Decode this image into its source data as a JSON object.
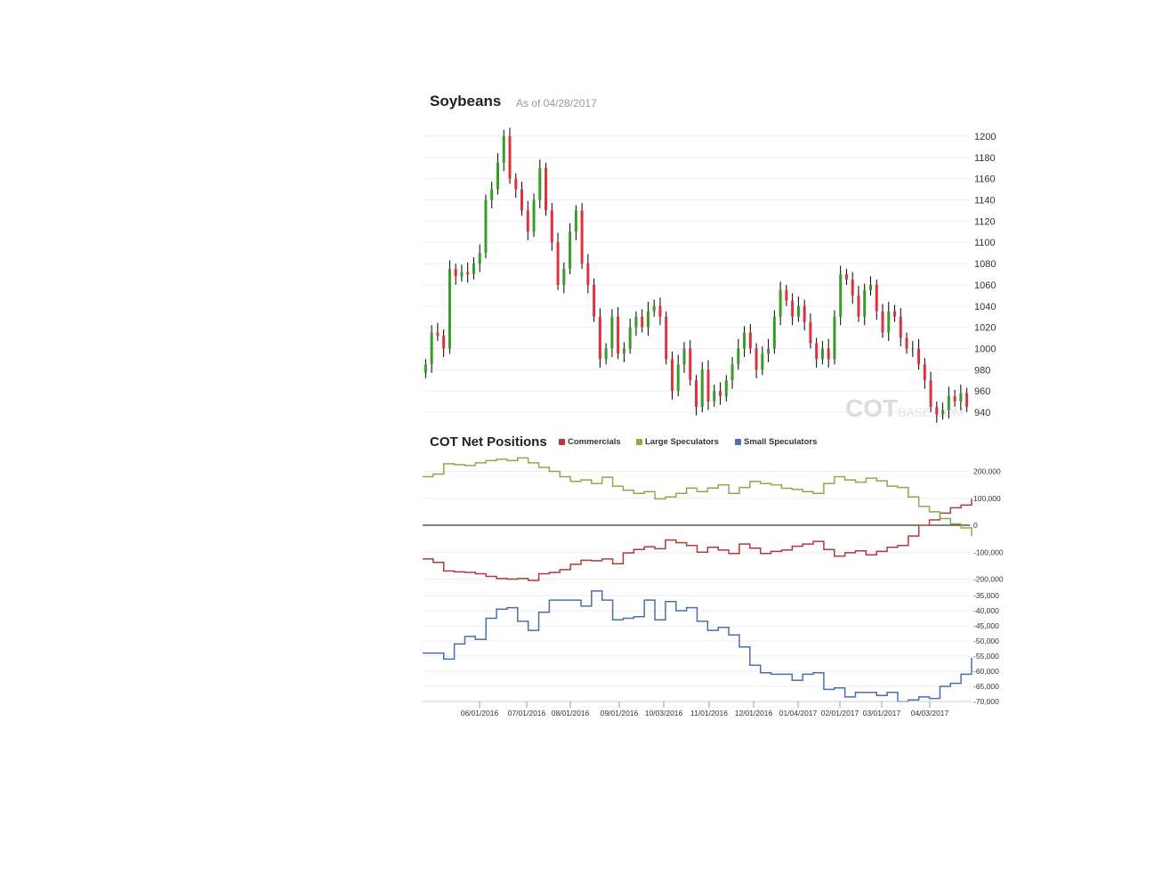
{
  "header": {
    "title": "Soybeans",
    "subtitle": "As of 04/28/2017"
  },
  "watermark": {
    "logo_text": "COTBASE.COM"
  },
  "colors": {
    "up": "#3a9a2a",
    "down": "#e0313c",
    "wick": "#000000",
    "commercials": "#b5383a",
    "large_speculators": "#8aab4a",
    "small_speculators": "#4a6fae",
    "grid": "#eeeeee"
  },
  "chart_data": [
    {
      "type": "candlestick",
      "title": "Soybeans",
      "ylim": [
        932,
        1211
      ],
      "yticks": [
        "1200",
        "1180",
        "1160",
        "1140",
        "1120",
        "1100",
        "1080",
        "1060",
        "1040",
        "1020",
        "1000",
        "980",
        "960",
        "940"
      ],
      "close": [
        985,
        1015,
        1012,
        1000,
        1075,
        1068,
        1072,
        1070,
        1080,
        1090,
        1140,
        1150,
        1175,
        1200,
        1160,
        1150,
        1130,
        1110,
        1140,
        1170,
        1130,
        1100,
        1060,
        1075,
        1110,
        1130,
        1080,
        1060,
        1030,
        990,
        1000,
        1030,
        995,
        1000,
        1020,
        1030,
        1020,
        1035,
        1040,
        1030,
        990,
        960,
        985,
        1000,
        970,
        945,
        980,
        950,
        960,
        955,
        970,
        985,
        1000,
        1015,
        1000,
        980,
        995,
        1000,
        1030,
        1055,
        1045,
        1030,
        1040,
        1025,
        1005,
        990,
        1000,
        990,
        1030,
        1070,
        1065,
        1050,
        1030,
        1055,
        1060,
        1035,
        1015,
        1035,
        1030,
        1010,
        1000,
        1000,
        985,
        970,
        945,
        938,
        942,
        955,
        950,
        958,
        945
      ],
      "grid": true
    },
    {
      "type": "line",
      "title": "COT Net Positions",
      "legend": "top",
      "yticks": [
        "200,000",
        "100,000",
        "0",
        "-100,000",
        "-200,000"
      ],
      "ylim": [
        -200000,
        200000
      ],
      "series": [
        {
          "name": "Commercials",
          "values": [
            -125000,
            -138000,
            -170000,
            -173000,
            -175000,
            -180000,
            -190000,
            -198000,
            -200000,
            -198000,
            -205000,
            -180000,
            -175000,
            -165000,
            -145000,
            -130000,
            -132000,
            -125000,
            -143000,
            -103000,
            -90000,
            -80000,
            -87000,
            -55000,
            -65000,
            -75000,
            -100000,
            -82000,
            -92000,
            -105000,
            -70000,
            -85000,
            -105000,
            -97000,
            -92000,
            -78000,
            -70000,
            -60000,
            -90000,
            -115000,
            -102000,
            -95000,
            -110000,
            -97000,
            -82000,
            -75000,
            -40000,
            0,
            20000,
            45000,
            65000,
            75000,
            100000
          ]
        },
        {
          "name": "Large Speculators",
          "values": [
            180000,
            190000,
            228000,
            225000,
            222000,
            232000,
            240000,
            245000,
            240000,
            250000,
            232000,
            215000,
            200000,
            180000,
            163000,
            168000,
            155000,
            178000,
            145000,
            130000,
            118000,
            125000,
            98000,
            105000,
            118000,
            138000,
            125000,
            138000,
            150000,
            118000,
            140000,
            163000,
            155000,
            150000,
            137000,
            133000,
            125000,
            118000,
            155000,
            180000,
            168000,
            160000,
            175000,
            165000,
            145000,
            140000,
            105000,
            70000,
            50000,
            25000,
            5000,
            -10000,
            -40000
          ]
        }
      ]
    },
    {
      "type": "line",
      "yticks": [
        "-35,000",
        "-40,000",
        "-45,000",
        "-50,000",
        "-55,000",
        "-60,000",
        "-65,000",
        "-70,000"
      ],
      "ylim": [
        -70000,
        -35000
      ],
      "series": [
        {
          "name": "Small Speculators",
          "values": [
            -54000,
            -54000,
            -56000,
            -51000,
            -48500,
            -49500,
            -42500,
            -39500,
            -39000,
            -43500,
            -46500,
            -40500,
            -36500,
            -36500,
            -36500,
            -38500,
            -33500,
            -36500,
            -43000,
            -42500,
            -42000,
            -36500,
            -43000,
            -37000,
            -40000,
            -39000,
            -43500,
            -46500,
            -45500,
            -48000,
            -52000,
            -58000,
            -60500,
            -61000,
            -61000,
            -63000,
            -61000,
            -60500,
            -66000,
            -65500,
            -68500,
            -67000,
            -67000,
            -68000,
            -67000,
            -70000,
            -69500,
            -68500,
            -69000,
            -65000,
            -64000,
            -61000,
            -55500
          ]
        }
      ],
      "xticks": [
        "06/01/2016",
        "07/01/2016",
        "08/01/2016",
        "09/01/2016",
        "10/03/2016",
        "11/01/2016",
        "12/01/2016",
        "01/04/2017",
        "02/01/2017",
        "03/01/2017",
        "04/03/2017"
      ]
    }
  ]
}
